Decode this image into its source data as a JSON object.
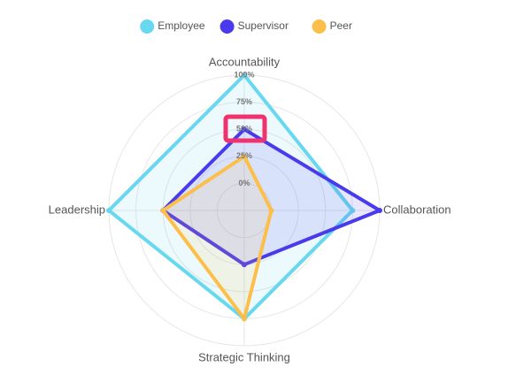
{
  "chart_data": {
    "type": "radar",
    "categories": [
      "Accountability",
      "Collaboration",
      "Strategic Thinking",
      "Leadership"
    ],
    "series": [
      {
        "name": "Employee",
        "color": "#67d8ef",
        "values": [
          100,
          75,
          75,
          100
        ]
      },
      {
        "name": "Supervisor",
        "color": "#4a3aed",
        "values": [
          50,
          100,
          25,
          50
        ]
      },
      {
        "name": "Peer",
        "color": "#fbbf4a",
        "values": [
          25,
          0,
          75,
          50
        ]
      }
    ],
    "rlim": [
      -25,
      100
    ],
    "rticks": [
      {
        "value": 0,
        "label": "0%"
      },
      {
        "value": 25,
        "label": "25%"
      },
      {
        "value": 50,
        "label": "50%"
      },
      {
        "value": 75,
        "label": "75%"
      },
      {
        "value": 100,
        "label": "100%"
      }
    ],
    "grid": true,
    "legend": "top"
  }
}
